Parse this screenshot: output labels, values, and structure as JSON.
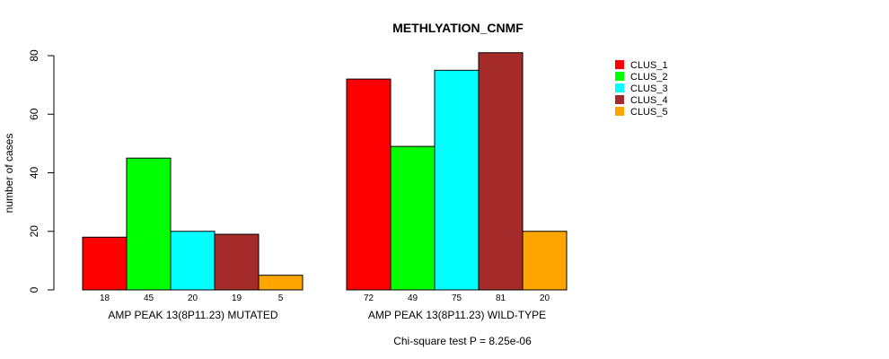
{
  "chart_data": {
    "type": "bar",
    "title": "METHLYATION_CNMF",
    "ylabel": "number of cases",
    "ylim": [
      0,
      80
    ],
    "yticks": [
      0,
      20,
      40,
      60,
      80
    ],
    "groups": [
      "AMP PEAK 13(8P11.23) MUTATED",
      "AMP PEAK 13(8P11.23) WILD-TYPE"
    ],
    "series": [
      {
        "name": "CLUS_1",
        "color": "#ff0000",
        "values": [
          18,
          72
        ]
      },
      {
        "name": "CLUS_2",
        "color": "#00ff00",
        "values": [
          45,
          49
        ]
      },
      {
        "name": "CLUS_3",
        "color": "#00ffff",
        "values": [
          20,
          75
        ]
      },
      {
        "name": "CLUS_4",
        "color": "#a52a2a",
        "values": [
          19,
          81
        ]
      },
      {
        "name": "CLUS_5",
        "color": "#ffa500",
        "values": [
          5,
          20
        ]
      }
    ],
    "footnote": "Chi-square test P = 8.25e-06",
    "legend_position": "top-right"
  }
}
